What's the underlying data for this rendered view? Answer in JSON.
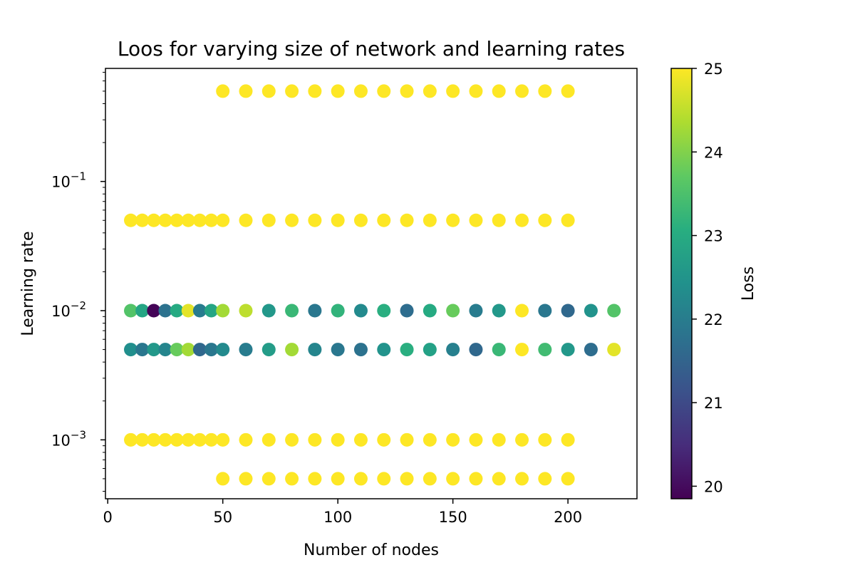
{
  "chart_data": {
    "type": "scatter",
    "title": "Loos for varying size of network and learning rates",
    "xlabel": "Number of nodes",
    "ylabel": "Learning rate",
    "xlim": [
      -1,
      230
    ],
    "ylim": [
      0.00035,
      0.75
    ],
    "yscale": "log",
    "xticks": [
      0,
      50,
      100,
      150,
      200
    ],
    "yticks": [
      {
        "value": 0.001,
        "base": "10",
        "exp": "−3"
      },
      {
        "value": 0.01,
        "base": "10",
        "exp": "−2"
      },
      {
        "value": 0.1,
        "base": "10",
        "exp": "−1"
      }
    ],
    "grid": false,
    "colorbar": {
      "label": "Loss",
      "range": [
        19.85,
        25.0
      ],
      "ticks": [
        20,
        21,
        22,
        23,
        24,
        25
      ],
      "colormap": "viridis"
    },
    "points": [
      {
        "x": 50,
        "y": 0.5,
        "loss": 25
      },
      {
        "x": 60,
        "y": 0.5,
        "loss": 25
      },
      {
        "x": 70,
        "y": 0.5,
        "loss": 25
      },
      {
        "x": 80,
        "y": 0.5,
        "loss": 25
      },
      {
        "x": 90,
        "y": 0.5,
        "loss": 25
      },
      {
        "x": 100,
        "y": 0.5,
        "loss": 25
      },
      {
        "x": 110,
        "y": 0.5,
        "loss": 25
      },
      {
        "x": 120,
        "y": 0.5,
        "loss": 25
      },
      {
        "x": 130,
        "y": 0.5,
        "loss": 25
      },
      {
        "x": 140,
        "y": 0.5,
        "loss": 25
      },
      {
        "x": 150,
        "y": 0.5,
        "loss": 25
      },
      {
        "x": 160,
        "y": 0.5,
        "loss": 25
      },
      {
        "x": 170,
        "y": 0.5,
        "loss": 25
      },
      {
        "x": 180,
        "y": 0.5,
        "loss": 25
      },
      {
        "x": 190,
        "y": 0.5,
        "loss": 25
      },
      {
        "x": 200,
        "y": 0.5,
        "loss": 25
      },
      {
        "x": 10,
        "y": 0.05,
        "loss": 25
      },
      {
        "x": 15,
        "y": 0.05,
        "loss": 25
      },
      {
        "x": 20,
        "y": 0.05,
        "loss": 25
      },
      {
        "x": 25,
        "y": 0.05,
        "loss": 25
      },
      {
        "x": 30,
        "y": 0.05,
        "loss": 25
      },
      {
        "x": 35,
        "y": 0.05,
        "loss": 25
      },
      {
        "x": 40,
        "y": 0.05,
        "loss": 25
      },
      {
        "x": 45,
        "y": 0.05,
        "loss": 25
      },
      {
        "x": 50,
        "y": 0.05,
        "loss": 25
      },
      {
        "x": 60,
        "y": 0.05,
        "loss": 25
      },
      {
        "x": 70,
        "y": 0.05,
        "loss": 25
      },
      {
        "x": 80,
        "y": 0.05,
        "loss": 25
      },
      {
        "x": 90,
        "y": 0.05,
        "loss": 25
      },
      {
        "x": 100,
        "y": 0.05,
        "loss": 25
      },
      {
        "x": 110,
        "y": 0.05,
        "loss": 25
      },
      {
        "x": 120,
        "y": 0.05,
        "loss": 25
      },
      {
        "x": 130,
        "y": 0.05,
        "loss": 25
      },
      {
        "x": 140,
        "y": 0.05,
        "loss": 25
      },
      {
        "x": 150,
        "y": 0.05,
        "loss": 25
      },
      {
        "x": 160,
        "y": 0.05,
        "loss": 25
      },
      {
        "x": 170,
        "y": 0.05,
        "loss": 25
      },
      {
        "x": 180,
        "y": 0.05,
        "loss": 25
      },
      {
        "x": 190,
        "y": 0.05,
        "loss": 25
      },
      {
        "x": 200,
        "y": 0.05,
        "loss": 25
      },
      {
        "x": 10,
        "y": 0.01,
        "loss": 23.6
      },
      {
        "x": 15,
        "y": 0.01,
        "loss": 22.9
      },
      {
        "x": 20,
        "y": 0.01,
        "loss": 19.9
      },
      {
        "x": 25,
        "y": 0.01,
        "loss": 21.8
      },
      {
        "x": 30,
        "y": 0.01,
        "loss": 23.0
      },
      {
        "x": 35,
        "y": 0.01,
        "loss": 24.8
      },
      {
        "x": 40,
        "y": 0.01,
        "loss": 22.0
      },
      {
        "x": 45,
        "y": 0.01,
        "loss": 22.9
      },
      {
        "x": 50,
        "y": 0.01,
        "loss": 24.3
      },
      {
        "x": 60,
        "y": 0.01,
        "loss": 24.5
      },
      {
        "x": 70,
        "y": 0.01,
        "loss": 22.6
      },
      {
        "x": 80,
        "y": 0.01,
        "loss": 23.3
      },
      {
        "x": 90,
        "y": 0.01,
        "loss": 21.9
      },
      {
        "x": 100,
        "y": 0.01,
        "loss": 23.2
      },
      {
        "x": 110,
        "y": 0.01,
        "loss": 22.3
      },
      {
        "x": 120,
        "y": 0.01,
        "loss": 23.1
      },
      {
        "x": 130,
        "y": 0.01,
        "loss": 21.7
      },
      {
        "x": 140,
        "y": 0.01,
        "loss": 23.0
      },
      {
        "x": 150,
        "y": 0.01,
        "loss": 23.8
      },
      {
        "x": 160,
        "y": 0.01,
        "loss": 22.0
      },
      {
        "x": 170,
        "y": 0.01,
        "loss": 22.6
      },
      {
        "x": 180,
        "y": 0.01,
        "loss": 25.0
      },
      {
        "x": 190,
        "y": 0.01,
        "loss": 21.9
      },
      {
        "x": 200,
        "y": 0.01,
        "loss": 21.6
      },
      {
        "x": 210,
        "y": 0.01,
        "loss": 22.5
      },
      {
        "x": 220,
        "y": 0.01,
        "loss": 23.6
      },
      {
        "x": 10,
        "y": 0.005,
        "loss": 22.4
      },
      {
        "x": 15,
        "y": 0.005,
        "loss": 21.9
      },
      {
        "x": 20,
        "y": 0.005,
        "loss": 22.6
      },
      {
        "x": 25,
        "y": 0.005,
        "loss": 22.2
      },
      {
        "x": 30,
        "y": 0.005,
        "loss": 23.8
      },
      {
        "x": 35,
        "y": 0.005,
        "loss": 24.3
      },
      {
        "x": 40,
        "y": 0.005,
        "loss": 21.6
      },
      {
        "x": 45,
        "y": 0.005,
        "loss": 21.9
      },
      {
        "x": 50,
        "y": 0.005,
        "loss": 22.3
      },
      {
        "x": 60,
        "y": 0.005,
        "loss": 22.0
      },
      {
        "x": 70,
        "y": 0.005,
        "loss": 22.7
      },
      {
        "x": 80,
        "y": 0.005,
        "loss": 24.3
      },
      {
        "x": 90,
        "y": 0.005,
        "loss": 22.2
      },
      {
        "x": 100,
        "y": 0.005,
        "loss": 21.9
      },
      {
        "x": 110,
        "y": 0.005,
        "loss": 21.8
      },
      {
        "x": 120,
        "y": 0.005,
        "loss": 22.5
      },
      {
        "x": 130,
        "y": 0.005,
        "loss": 23.1
      },
      {
        "x": 140,
        "y": 0.005,
        "loss": 22.8
      },
      {
        "x": 150,
        "y": 0.005,
        "loss": 22.1
      },
      {
        "x": 160,
        "y": 0.005,
        "loss": 21.6
      },
      {
        "x": 170,
        "y": 0.005,
        "loss": 23.3
      },
      {
        "x": 180,
        "y": 0.005,
        "loss": 25.0
      },
      {
        "x": 190,
        "y": 0.005,
        "loss": 23.4
      },
      {
        "x": 200,
        "y": 0.005,
        "loss": 22.6
      },
      {
        "x": 210,
        "y": 0.005,
        "loss": 21.7
      },
      {
        "x": 220,
        "y": 0.005,
        "loss": 24.8
      },
      {
        "x": 10,
        "y": 0.001,
        "loss": 25
      },
      {
        "x": 15,
        "y": 0.001,
        "loss": 25
      },
      {
        "x": 20,
        "y": 0.001,
        "loss": 25
      },
      {
        "x": 25,
        "y": 0.001,
        "loss": 25
      },
      {
        "x": 30,
        "y": 0.001,
        "loss": 25
      },
      {
        "x": 35,
        "y": 0.001,
        "loss": 25
      },
      {
        "x": 40,
        "y": 0.001,
        "loss": 25
      },
      {
        "x": 45,
        "y": 0.001,
        "loss": 25
      },
      {
        "x": 50,
        "y": 0.001,
        "loss": 25
      },
      {
        "x": 60,
        "y": 0.001,
        "loss": 25
      },
      {
        "x": 70,
        "y": 0.001,
        "loss": 25
      },
      {
        "x": 80,
        "y": 0.001,
        "loss": 25
      },
      {
        "x": 90,
        "y": 0.001,
        "loss": 25
      },
      {
        "x": 100,
        "y": 0.001,
        "loss": 25
      },
      {
        "x": 110,
        "y": 0.001,
        "loss": 25
      },
      {
        "x": 120,
        "y": 0.001,
        "loss": 25
      },
      {
        "x": 130,
        "y": 0.001,
        "loss": 25
      },
      {
        "x": 140,
        "y": 0.001,
        "loss": 25
      },
      {
        "x": 150,
        "y": 0.001,
        "loss": 25
      },
      {
        "x": 160,
        "y": 0.001,
        "loss": 25
      },
      {
        "x": 170,
        "y": 0.001,
        "loss": 25
      },
      {
        "x": 180,
        "y": 0.001,
        "loss": 25
      },
      {
        "x": 190,
        "y": 0.001,
        "loss": 25
      },
      {
        "x": 200,
        "y": 0.001,
        "loss": 25
      },
      {
        "x": 50,
        "y": 0.0005,
        "loss": 25
      },
      {
        "x": 60,
        "y": 0.0005,
        "loss": 25
      },
      {
        "x": 70,
        "y": 0.0005,
        "loss": 25
      },
      {
        "x": 80,
        "y": 0.0005,
        "loss": 25
      },
      {
        "x": 90,
        "y": 0.0005,
        "loss": 25
      },
      {
        "x": 100,
        "y": 0.0005,
        "loss": 25
      },
      {
        "x": 110,
        "y": 0.0005,
        "loss": 25
      },
      {
        "x": 120,
        "y": 0.0005,
        "loss": 25
      },
      {
        "x": 130,
        "y": 0.0005,
        "loss": 25
      },
      {
        "x": 140,
        "y": 0.0005,
        "loss": 25
      },
      {
        "x": 150,
        "y": 0.0005,
        "loss": 25
      },
      {
        "x": 160,
        "y": 0.0005,
        "loss": 25
      },
      {
        "x": 170,
        "y": 0.0005,
        "loss": 25
      },
      {
        "x": 180,
        "y": 0.0005,
        "loss": 25
      },
      {
        "x": 190,
        "y": 0.0005,
        "loss": 25
      },
      {
        "x": 200,
        "y": 0.0005,
        "loss": 25
      }
    ]
  }
}
